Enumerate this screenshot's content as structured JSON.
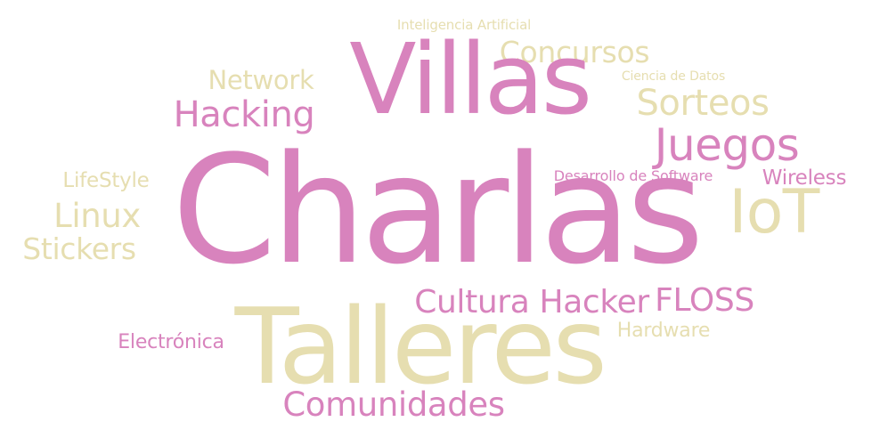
{
  "colors": {
    "pink": "#d883bd",
    "tan": "#e6deb0",
    "background": "#ffffff"
  },
  "words": {
    "inteligencia_artificial": "Inteligencia Artificial",
    "concursos": "Concursos",
    "villas": "Villas",
    "network": "Network",
    "ciencia_de_datos": "Ciencia de Datos",
    "hacking": "Hacking",
    "sorteos": "Sorteos",
    "juegos": "Juegos",
    "charlas": "Charlas",
    "lifestyle": "LifeStyle",
    "desarrollo_de_software": "Desarrollo de Software",
    "wireless": "Wireless",
    "linux": "Linux",
    "iot": "IoT",
    "stickers": "Stickers",
    "cultura_hacker": "Cultura Hacker",
    "floss": "FLOSS",
    "hardware": "Hardware",
    "electronica": "Electrónica",
    "talleres": "Talleres",
    "comunidades": "Comunidades"
  }
}
